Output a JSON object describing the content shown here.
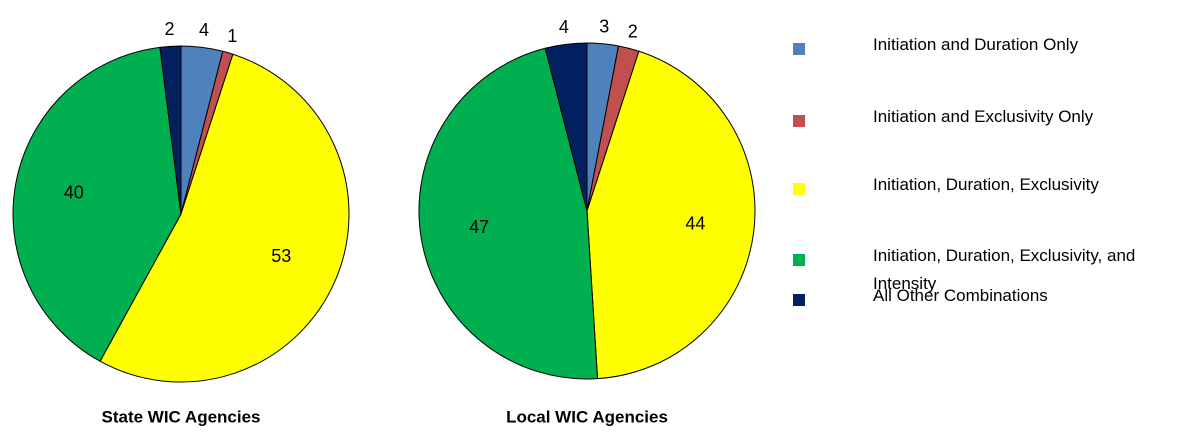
{
  "chart_data": [
    {
      "type": "pie",
      "title": "State WIC Agencies",
      "values": [
        4,
        1,
        53,
        40,
        2
      ]
    },
    {
      "type": "pie",
      "title": "Local WIC Agencies",
      "values": [
        3,
        2,
        44,
        47,
        4
      ]
    }
  ],
  "legend": {
    "categories": [
      "Initiation and Duration Only",
      "Initiation and Exclusivity Only",
      "Initiation, Duration, Exclusivity",
      "Initiation, Duration, Exclusivity, and Intensity",
      "All Other Combinations"
    ],
    "colors": [
      "#4f81bd",
      "#c0504d",
      "#ffff00",
      "#00b050",
      "#002060"
    ]
  }
}
